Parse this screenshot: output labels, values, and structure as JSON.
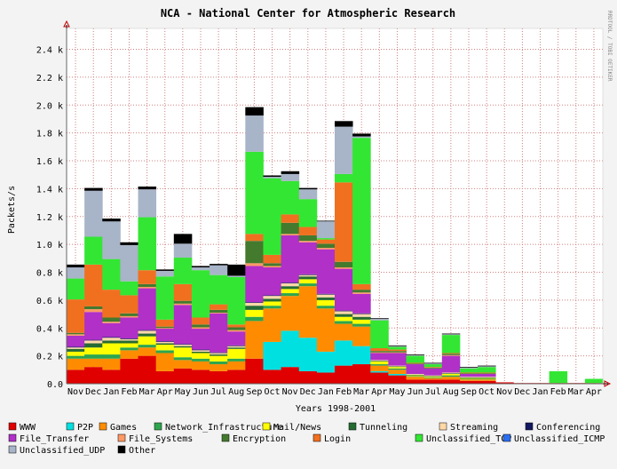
{
  "chart_data": {
    "type": "bar",
    "stacked": true,
    "title": "NCA - National Center for Atmospheric Research",
    "xlabel": "Years 1998-2001",
    "ylabel": "Packets/s",
    "side_credit": "RRDTOOL / TOBI OETIKER",
    "ylim": [
      0,
      2.55
    ],
    "y_ticks": [
      0,
      0.2,
      0.4,
      0.6,
      0.8,
      1.0,
      1.2,
      1.4,
      1.6,
      1.8,
      2.0,
      2.2,
      2.4
    ],
    "y_tick_labels": [
      "0.0",
      "0.2 k",
      "0.4 k",
      "0.6 k",
      "0.8 k",
      "1.0 k",
      "1.2 k",
      "1.4 k",
      "1.6 k",
      "1.8 k",
      "2.0 k",
      "2.2 k",
      "2.4 k"
    ],
    "grid": true,
    "legend_position": "bottom",
    "categories": [
      "Nov",
      "Dec",
      "Jan",
      "Feb",
      "Mar",
      "Apr",
      "May",
      "Jun",
      "Jul",
      "Aug",
      "Sep",
      "Oct",
      "Nov",
      "Dec",
      "Jan",
      "Feb",
      "Mar",
      "Apr",
      "May",
      "Jun",
      "Jul",
      "Aug",
      "Sep",
      "Oct",
      "Nov",
      "Dec",
      "Jan",
      "Feb",
      "Mar",
      "Apr"
    ],
    "series": [
      {
        "name": "WWW",
        "color": "#e00000",
        "values": [
          0.1,
          0.12,
          0.1,
          0.18,
          0.2,
          0.09,
          0.11,
          0.1,
          0.09,
          0.1,
          0.18,
          0.1,
          0.12,
          0.09,
          0.08,
          0.13,
          0.14,
          0.08,
          0.06,
          0.03,
          0.03,
          0.03,
          0.02,
          0.02,
          0.01,
          0.005,
          0.005,
          0.005,
          0.005,
          0.005
        ]
      },
      {
        "name": "P2P",
        "color": "#00e0e0",
        "values": [
          0,
          0,
          0,
          0,
          0,
          0,
          0,
          0,
          0,
          0,
          0,
          0.2,
          0.26,
          0.24,
          0.15,
          0.18,
          0.13,
          0.01,
          0.01,
          0,
          0,
          0,
          0,
          0,
          0,
          0,
          0,
          0,
          0,
          0
        ]
      },
      {
        "name": "Games",
        "color": "#ff8c00",
        "values": [
          0.08,
          0.06,
          0.08,
          0.06,
          0.06,
          0.13,
          0.06,
          0.06,
          0.05,
          0.06,
          0.27,
          0.24,
          0.25,
          0.37,
          0.31,
          0.12,
          0.14,
          0.04,
          0.03,
          0.02,
          0.01,
          0.02,
          0.01,
          0.01,
          0,
          0,
          0,
          0,
          0,
          0
        ]
      },
      {
        "name": "Network_Infrastructure",
        "color": "#2da64d",
        "values": [
          0.02,
          0.03,
          0.03,
          0.02,
          0.02,
          0.02,
          0.02,
          0.02,
          0.02,
          0.02,
          0.03,
          0.02,
          0.02,
          0.02,
          0.02,
          0.02,
          0.02,
          0.01,
          0.01,
          0.005,
          0.005,
          0.01,
          0.005,
          0.005,
          0,
          0,
          0,
          0,
          0,
          0
        ]
      },
      {
        "name": "Mail/News",
        "color": "#ffff00",
        "values": [
          0.03,
          0.05,
          0.08,
          0.03,
          0.06,
          0.04,
          0.07,
          0.04,
          0.04,
          0.07,
          0.05,
          0.03,
          0.03,
          0.03,
          0.04,
          0.03,
          0.03,
          0.02,
          0.01,
          0.005,
          0.005,
          0.01,
          0.005,
          0.005,
          0,
          0,
          0,
          0,
          0,
          0
        ]
      },
      {
        "name": "Tunneling",
        "color": "#256b34",
        "values": [
          0.02,
          0.03,
          0.02,
          0.02,
          0.02,
          0.01,
          0.01,
          0.01,
          0.01,
          0.01,
          0.03,
          0.02,
          0.02,
          0.02,
          0.02,
          0.02,
          0.02,
          0.005,
          0.005,
          0.005,
          0.005,
          0.005,
          0.005,
          0.005,
          0,
          0,
          0,
          0,
          0,
          0
        ]
      },
      {
        "name": "Streaming",
        "color": "#ffd9a8",
        "values": [
          0.01,
          0.02,
          0.02,
          0.01,
          0.02,
          0.01,
          0.01,
          0.01,
          0.01,
          0.01,
          0.02,
          0.02,
          0.02,
          0.01,
          0.02,
          0.02,
          0.02,
          0.005,
          0.005,
          0.005,
          0.005,
          0.005,
          0.005,
          0.005,
          0,
          0,
          0,
          0,
          0,
          0
        ]
      },
      {
        "name": "Conferencing",
        "color": "#141a60",
        "values": [
          0.005,
          0.005,
          0.005,
          0.005,
          0.005,
          0.005,
          0.005,
          0.005,
          0.005,
          0.005,
          0.005,
          0.005,
          0.005,
          0.005,
          0.005,
          0.005,
          0.005,
          0,
          0,
          0,
          0,
          0,
          0,
          0,
          0,
          0,
          0,
          0,
          0,
          0
        ]
      },
      {
        "name": "File_Transfer",
        "color": "#b030c8",
        "values": [
          0.08,
          0.2,
          0.1,
          0.15,
          0.3,
          0.09,
          0.28,
          0.15,
          0.28,
          0.1,
          0.26,
          0.2,
          0.34,
          0.23,
          0.32,
          0.3,
          0.14,
          0.05,
          0.09,
          0.07,
          0.05,
          0.12,
          0.02,
          0.02,
          0,
          0,
          0,
          0,
          0,
          0
        ]
      },
      {
        "name": "File_Systems",
        "color": "#ff9966",
        "values": [
          0.01,
          0.02,
          0.01,
          0.01,
          0.01,
          0.005,
          0.01,
          0.01,
          0.005,
          0.01,
          0.02,
          0.01,
          0.01,
          0.01,
          0.01,
          0.01,
          0.01,
          0.005,
          0.005,
          0,
          0,
          0.005,
          0,
          0,
          0,
          0,
          0,
          0,
          0,
          0
        ]
      },
      {
        "name": "Encryption",
        "color": "#447a2e",
        "values": [
          0.01,
          0.02,
          0.03,
          0.02,
          0.02,
          0.01,
          0.02,
          0.02,
          0.02,
          0.02,
          0.16,
          0.02,
          0.08,
          0.04,
          0.03,
          0.04,
          0.02,
          0.01,
          0.01,
          0.005,
          0.005,
          0.01,
          0.005,
          0.005,
          0,
          0,
          0,
          0,
          0,
          0
        ]
      },
      {
        "name": "Login",
        "color": "#f07020",
        "values": [
          0.24,
          0.3,
          0.2,
          0.13,
          0.1,
          0.05,
          0.12,
          0.05,
          0.04,
          0.02,
          0.05,
          0.06,
          0.06,
          0.06,
          0.03,
          0.57,
          0.04,
          0.02,
          0.01,
          0.005,
          0.005,
          0.005,
          0.005,
          0.005,
          0,
          0,
          0,
          0,
          0,
          0
        ]
      },
      {
        "name": "Unclassified_TCP",
        "color": "#33e633",
        "values": [
          0.15,
          0.2,
          0.22,
          0.1,
          0.38,
          0.31,
          0.19,
          0.34,
          0.21,
          0.34,
          0.59,
          0.55,
          0.24,
          0.2,
          0.01,
          0.06,
          1.05,
          0.2,
          0.02,
          0.05,
          0.02,
          0.13,
          0.03,
          0.04,
          0,
          0,
          0,
          0.085,
          0,
          0.03
        ]
      },
      {
        "name": "Unclassified_ICMP",
        "color": "#2b6ff0",
        "values": [
          0,
          0,
          0,
          0,
          0,
          0,
          0,
          0,
          0,
          0,
          0,
          0,
          0,
          0,
          0,
          0,
          0,
          0,
          0,
          0,
          0,
          0,
          0,
          0,
          0,
          0,
          0,
          0,
          0,
          0
        ]
      },
      {
        "name": "Unclassified_UDP",
        "color": "#a8b4c8",
        "values": [
          0.08,
          0.33,
          0.27,
          0.26,
          0.2,
          0.04,
          0.1,
          0.02,
          0.07,
          0.01,
          0.26,
          0.01,
          0.05,
          0.07,
          0.12,
          0.34,
          0.01,
          0.01,
          0.005,
          0.005,
          0.005,
          0.005,
          0.005,
          0.005,
          0,
          0,
          0,
          0,
          0,
          0
        ]
      },
      {
        "name": "Other",
        "color": "#000000",
        "values": [
          0.02,
          0.02,
          0.02,
          0.02,
          0.02,
          0.01,
          0.07,
          0.01,
          0.01,
          0.08,
          0.06,
          0.01,
          0.02,
          0.01,
          0.005,
          0.04,
          0.02,
          0.005,
          0.005,
          0.005,
          0.005,
          0.005,
          0.005,
          0.005,
          0,
          0,
          0,
          0,
          0,
          0
        ]
      }
    ]
  }
}
